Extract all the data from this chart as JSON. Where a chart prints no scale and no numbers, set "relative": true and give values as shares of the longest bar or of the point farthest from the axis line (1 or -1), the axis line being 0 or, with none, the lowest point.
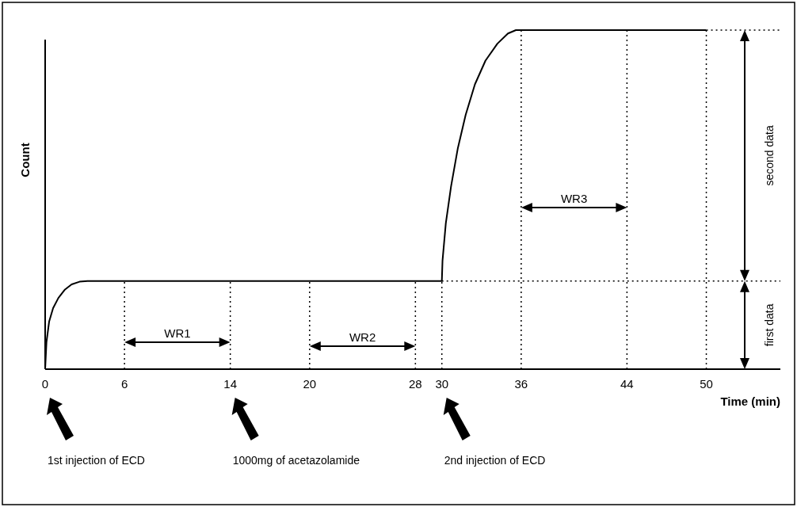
{
  "chart_data": {
    "type": "line",
    "relative": true,
    "ylabel": "Count",
    "xlabel": "Time (min)",
    "xlim": [
      0,
      55.6
    ],
    "xticks": [
      0,
      6,
      14,
      20,
      28,
      30,
      36,
      44,
      50
    ],
    "x": [
      0,
      0.1,
      0.3,
      0.6,
      1,
      1.5,
      2,
      2.6,
      3.2,
      30,
      30.05,
      30.3,
      30.7,
      31.2,
      31.8,
      32.5,
      33.3,
      34.2,
      35,
      35.6,
      50
    ],
    "series": [
      {
        "color": "#000000",
        "values": [
          0,
          0.08,
          0.14,
          0.18,
          0.21,
          0.235,
          0.25,
          0.258,
          0.26,
          0.26,
          0.32,
          0.43,
          0.54,
          0.65,
          0.75,
          0.84,
          0.91,
          0.96,
          0.99,
          1,
          1
        ]
      }
    ],
    "line_style": "solid",
    "marker": "none",
    "grid": false,
    "ref_lines": [
      {
        "axis": "x",
        "value": 6,
        "line_style": "dotted"
      },
      {
        "axis": "x",
        "value": 14,
        "line_style": "dotted"
      },
      {
        "axis": "x",
        "value": 20,
        "line_style": "dotted"
      },
      {
        "axis": "x",
        "value": 28,
        "line_style": "dotted"
      },
      {
        "axis": "x",
        "value": 30,
        "line_style": "dotted"
      },
      {
        "axis": "x",
        "value": 36,
        "line_style": "dotted"
      },
      {
        "axis": "x",
        "value": 44,
        "line_style": "dotted"
      },
      {
        "axis": "x",
        "value": 50,
        "line_style": "dotted"
      },
      {
        "axis": "y",
        "value": 0.26,
        "line_style": "dotted"
      },
      {
        "axis": "y",
        "value": 1,
        "line_style": "dotted"
      }
    ],
    "annotations": [
      "WR1",
      "WR2",
      "WR3",
      "first data",
      "second data",
      "1st injection of ECD",
      "1000mg of acetazolamide",
      "2nd injection of ECD"
    ]
  }
}
